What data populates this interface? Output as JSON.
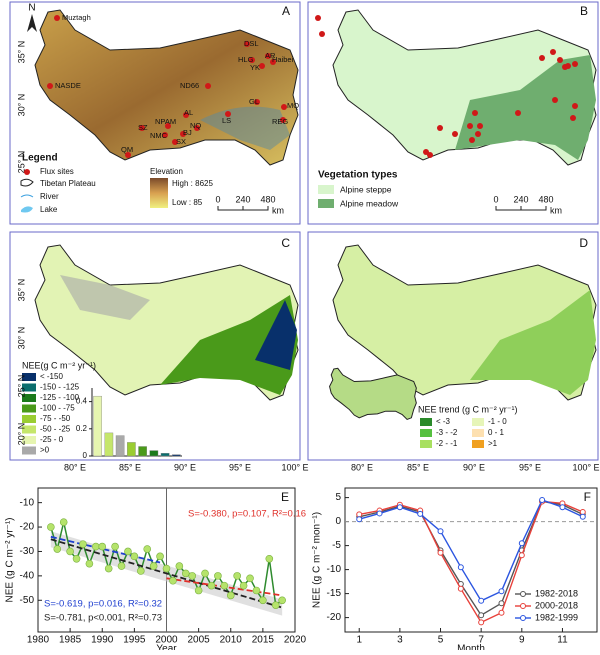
{
  "maps": {
    "A": {
      "letter": "A",
      "north": "N",
      "sites": [
        "Muztagh",
        "DSL",
        "AR",
        "HLG",
        "YK",
        "Haibei",
        "NASDE",
        "ND66",
        "GL",
        "MQ",
        "REG",
        "AL",
        "LS",
        "NPAM",
        "NQ",
        "SZ",
        "NMC",
        "BJ",
        "SX",
        "QM"
      ],
      "legend_title": "Legend",
      "legend": [
        "Flux sites",
        "Tibetan Plateau",
        "River",
        "Lake"
      ],
      "elevation_title": "Elevation",
      "elevation_high": "High : 8625",
      "elevation_low": "Low : 85",
      "scale": [
        "0",
        "240",
        "480",
        "km"
      ],
      "lat_labels": [
        "35° N",
        "30° N",
        "25° N"
      ]
    },
    "B": {
      "letter": "B",
      "legend_title": "Vegetation types",
      "legend": [
        "Alpine steppe",
        "Alpine meadow"
      ],
      "legend_colors": [
        "#d8f5cc",
        "#6fae6f"
      ],
      "scale": [
        "0",
        "240",
        "480",
        "km"
      ]
    },
    "C": {
      "letter": "C",
      "legend_title": "NEE(g C m⁻² yr⁻¹)",
      "legend": [
        "< -150",
        "-150 - -125",
        "-125 - -100",
        "-100 - -75",
        "-75 - -50",
        "-50 - -25",
        "-25 - 0",
        ">0"
      ],
      "legend_colors": [
        "#08306b",
        "#0b6e6e",
        "#1b7a1b",
        "#4a9a1a",
        "#9acd32",
        "#c5e66b",
        "#e6f5b0",
        "#a9a9a9"
      ],
      "lat_labels": [
        "35° N",
        "30° N",
        "25° N",
        "20° N"
      ],
      "lon_labels": [
        "80° E",
        "85° E",
        "90° E",
        "95° E",
        "100° E"
      ]
    },
    "D": {
      "letter": "D",
      "legend_title": "NEE trend (g C m⁻² yr⁻¹)",
      "legend": [
        "< -3",
        "-3 - -2",
        "-2 - -1",
        "-1 - 0",
        "0 - 1",
        ">1"
      ],
      "legend_colors": [
        "#2a8a2a",
        "#55c040",
        "#a8e060",
        "#e6f5b8",
        "#fde0b0",
        "#f0a020"
      ],
      "lon_labels": [
        "80° E",
        "85° E",
        "90° E",
        "95° E",
        "100° E"
      ]
    }
  },
  "chart_data": [
    {
      "type": "bar",
      "categories": [
        null,
        null,
        null,
        null,
        null,
        null,
        null,
        null
      ],
      "values": [
        0.44,
        0.17,
        0.15,
        0.1,
        0.07,
        0.04,
        0.02,
        0.01
      ],
      "colors": [
        "#e6f5b0",
        "#c5e66b",
        "#a9a9a9",
        "#9acd32",
        "#4a9a1a",
        "#1b7a1b",
        "#0b6e6e",
        "#08306b"
      ],
      "ylim": [
        0,
        0.5
      ],
      "yticks": [
        0,
        0.2,
        0.4
      ]
    },
    {
      "type": "line",
      "letter": "E",
      "xlabel": "Year",
      "ylabel": "NEE (g C m⁻² yr⁻¹)",
      "x": [
        1982,
        1983,
        1984,
        1985,
        1986,
        1987,
        1988,
        1989,
        1990,
        1991,
        1992,
        1993,
        1994,
        1995,
        1996,
        1997,
        1998,
        1999,
        2000,
        2001,
        2002,
        2003,
        2004,
        2005,
        2006,
        2007,
        2008,
        2009,
        2010,
        2011,
        2012,
        2013,
        2014,
        2015,
        2016,
        2017,
        2018
      ],
      "values": [
        -20,
        -29,
        -18,
        -30,
        -33,
        -27,
        -35,
        -28,
        -28,
        -37,
        -28,
        -36,
        -30,
        -32,
        -38,
        -29,
        -36,
        -32,
        -37,
        -42,
        -36,
        -39,
        -40,
        -46,
        -39,
        -44,
        -40,
        -44,
        -48,
        -40,
        -44,
        -41,
        -46,
        -50,
        -33,
        -52,
        -50
      ],
      "color": "#2e8b2e",
      "marker_color": "#b5e36b",
      "divider": 2000,
      "trends": [
        {
          "x": [
            1982,
            2018
          ],
          "values": [
            -25,
            -53
          ],
          "color": "#222222",
          "label": "S=-0.781, p<0.001, R²=0.73"
        },
        {
          "x": [
            1982,
            1999
          ],
          "values": [
            -24,
            -34.5
          ],
          "color": "#1f3fcf",
          "label": "S=-0.619, p=0.016, R²=0.32"
        },
        {
          "x": [
            2000,
            2018
          ],
          "values": [
            -41,
            -48
          ],
          "color": "#e0302a",
          "label": "S=-0.380, p=0.107, R²=0.16"
        }
      ],
      "xlim": [
        1980,
        2020
      ],
      "xticks": [
        1980,
        1985,
        1990,
        1995,
        2000,
        2005,
        2010,
        2015,
        2020
      ],
      "ylim": [
        -63,
        -4
      ],
      "yticks": [
        -10,
        -20,
        -30,
        -40,
        -50
      ]
    },
    {
      "type": "line",
      "letter": "F",
      "xlabel": "Month",
      "ylabel": "NEE (g C m⁻² mon⁻¹)",
      "x": [
        1,
        2,
        3,
        4,
        5,
        6,
        7,
        8,
        9,
        10,
        11,
        12
      ],
      "series": [
        {
          "name": "1982-2018",
          "color": "#555555",
          "values": [
            1,
            2,
            3.2,
            2,
            -6,
            -13,
            -19.5,
            -17,
            -6,
            4.2,
            3.5,
            1.5
          ]
        },
        {
          "name": "2000-2018",
          "color": "#e8403a",
          "values": [
            1.5,
            2.3,
            3.5,
            2.3,
            -6.5,
            -14,
            -21,
            -19,
            -7,
            4.2,
            3.8,
            2
          ]
        },
        {
          "name": "1982-1999",
          "color": "#2b55e0",
          "values": [
            0.5,
            1.7,
            3,
            1.6,
            -2,
            -9.5,
            -16.5,
            -14.5,
            -4.5,
            4.5,
            3,
            1
          ]
        }
      ],
      "zero_line": 0,
      "xlim": [
        0.3,
        12.7
      ],
      "xticks": [
        1,
        3,
        5,
        7,
        9,
        11
      ],
      "ylim": [
        -23,
        7
      ],
      "yticks": [
        5,
        0,
        -5,
        -10,
        -15,
        -20
      ]
    }
  ]
}
